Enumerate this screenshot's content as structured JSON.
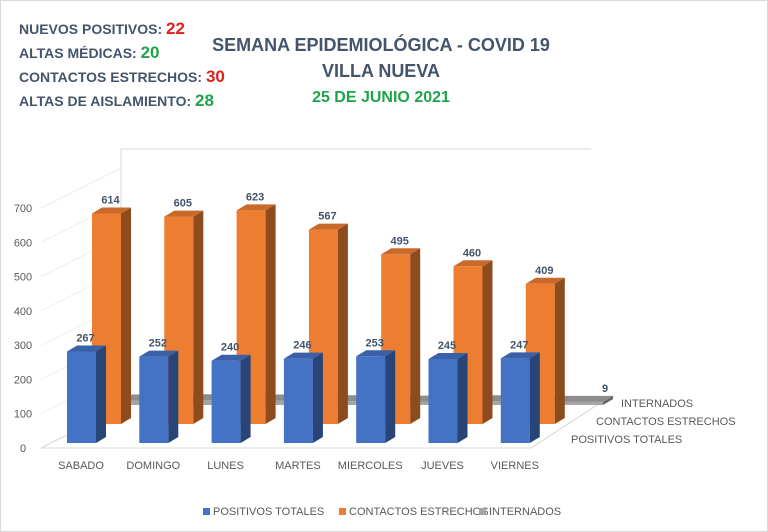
{
  "stats": [
    {
      "label": "NUEVOS POSITIVOS:",
      "value": "22",
      "color": "#e0201b"
    },
    {
      "label": "ALTAS MÉDICAS:",
      "value": "20",
      "color": "#1fa34a"
    },
    {
      "label": "CONTACTOS ESTRECHOS:",
      "value": "30",
      "color": "#e0201b"
    },
    {
      "label": "ALTAS DE AISLAMIENTO:",
      "value": "28",
      "color": "#1fa34a"
    }
  ],
  "chart_data": {
    "type": "bar",
    "title": "SEMANA EPIDEMIOLÓGICA - COVID 19",
    "subtitle": "VILLA NUEVA",
    "date": "25 DE JUNIO 2021",
    "categories": [
      "SABADO",
      "DOMINGO",
      "LUNES",
      "MARTES",
      "MIERCOLES",
      "JUEVES",
      "VIERNES"
    ],
    "series": [
      {
        "name": "POSITIVOS TOTALES",
        "color": "#4472c4",
        "values": [
          267,
          252,
          240,
          246,
          253,
          245,
          247
        ]
      },
      {
        "name": "CONTACTOS ESTRECHOS",
        "color": "#ed7d31",
        "values": [
          614,
          605,
          623,
          567,
          495,
          460,
          409
        ]
      },
      {
        "name": "INTERNADOS",
        "color": "#a5a5a5",
        "values": [
          13,
          14,
          13,
          11,
          10,
          11,
          9
        ]
      }
    ],
    "ylim": [
      0,
      700
    ],
    "yticks": [
      0,
      100,
      200,
      300,
      400,
      500,
      600,
      700
    ],
    "legend": "bottom",
    "style": "3d-column"
  }
}
